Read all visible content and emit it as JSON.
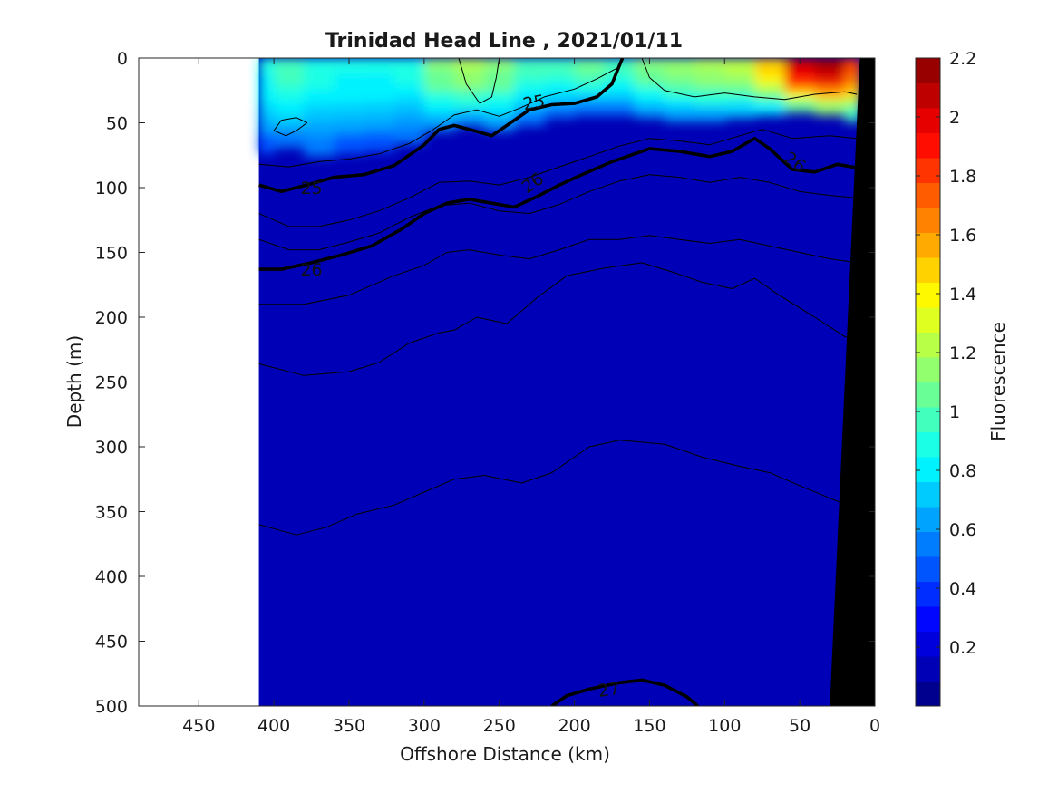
{
  "chart_data": {
    "type": "heatmap",
    "title": "Trinidad Head Line , 2021/01/11",
    "xlabel": "Offshore Distance (km)",
    "ylabel": "Depth (m)",
    "colorbar_label": "Fluorescence",
    "xlim": [
      490,
      0
    ],
    "ylim": [
      500,
      0
    ],
    "x_reversed": true,
    "y_reversed": true,
    "x_ticks": [
      "450",
      "400",
      "350",
      "300",
      "250",
      "200",
      "150",
      "100",
      "50",
      "0"
    ],
    "x_tick_values": [
      450,
      400,
      350,
      300,
      250,
      200,
      150,
      100,
      50,
      0
    ],
    "y_ticks": [
      "0",
      "50",
      "100",
      "150",
      "200",
      "250",
      "300",
      "350",
      "400",
      "450",
      "500"
    ],
    "y_tick_values": [
      0,
      50,
      100,
      150,
      200,
      250,
      300,
      350,
      400,
      450,
      500
    ],
    "colorbar_range": [
      0,
      2.2
    ],
    "colorbar_ticks": [
      "0.2",
      "0.4",
      "0.6",
      "0.8",
      "1",
      "1.2",
      "1.4",
      "1.6",
      "1.8",
      "2",
      "2.2"
    ],
    "colorbar_tick_values": [
      0.2,
      0.4,
      0.6,
      0.8,
      1.0,
      1.2,
      1.4,
      1.6,
      1.8,
      2.0,
      2.2
    ],
    "colormap": [
      "#00008f",
      "#0000b6",
      "#0000dd",
      "#0006ff",
      "#002dff",
      "#0055ff",
      "#007cff",
      "#00a4ff",
      "#00cbff",
      "#00f2ff",
      "#1affe5",
      "#42ffbd",
      "#69ff96",
      "#91ff6e",
      "#b8ff47",
      "#dfff20",
      "#fff900",
      "#ffd200",
      "#ffaa00",
      "#ff8300",
      "#ff5c00",
      "#ff3400",
      "#ff0d00",
      "#e60000",
      "#bf0000",
      "#980000"
    ],
    "data_x_extent": [
      410,
      10
    ],
    "background_value": 0.15,
    "surface_fluorescence": {
      "distance_km": [
        410,
        390,
        370,
        350,
        330,
        310,
        290,
        270,
        250,
        230,
        210,
        190,
        170,
        150,
        130,
        110,
        90,
        70,
        50,
        30,
        10
      ],
      "top_depth_m": 0,
      "values_0_50m": [
        0.85,
        0.95,
        0.9,
        0.85,
        0.85,
        0.9,
        1.1,
        1.2,
        1.1,
        0.95,
        1.0,
        1.05,
        1.0,
        1.1,
        1.15,
        1.2,
        1.25,
        1.5,
        2.05,
        2.15,
        1.8
      ],
      "mixed_layer_depth_m": [
        70,
        65,
        72,
        70,
        68,
        62,
        52,
        48,
        52,
        48,
        42,
        40,
        40,
        42,
        45,
        45,
        42,
        40,
        38,
        40,
        45
      ]
    },
    "contours": [
      {
        "label": "25",
        "bold": true,
        "points": [
          [
            410,
            98
          ],
          [
            395,
            103
          ],
          [
            375,
            97
          ],
          [
            360,
            92
          ],
          [
            340,
            90
          ],
          [
            320,
            83
          ],
          [
            300,
            67
          ],
          [
            290,
            55
          ],
          [
            280,
            52
          ],
          [
            270,
            55
          ],
          [
            255,
            60
          ],
          [
            245,
            52
          ],
          [
            230,
            40
          ],
          [
            215,
            36
          ],
          [
            200,
            35
          ],
          [
            185,
            30
          ],
          [
            175,
            20
          ],
          [
            168,
            0
          ]
        ]
      },
      {
        "label": "26",
        "bold": true,
        "points": [
          [
            410,
            163
          ],
          [
            395,
            163
          ],
          [
            375,
            158
          ],
          [
            355,
            152
          ],
          [
            335,
            145
          ],
          [
            315,
            132
          ],
          [
            300,
            120
          ],
          [
            285,
            112
          ],
          [
            270,
            109
          ],
          [
            255,
            112
          ],
          [
            240,
            115
          ],
          [
            225,
            107
          ],
          [
            210,
            98
          ],
          [
            195,
            90
          ],
          [
            175,
            80
          ],
          [
            150,
            70
          ],
          [
            130,
            72
          ],
          [
            110,
            76
          ],
          [
            95,
            72
          ],
          [
            80,
            62
          ],
          [
            70,
            70
          ],
          [
            55,
            86
          ],
          [
            40,
            88
          ],
          [
            25,
            82
          ],
          [
            10,
            85
          ]
        ]
      },
      {
        "label": "27",
        "bold": true,
        "points": [
          [
            215,
            500
          ],
          [
            205,
            492
          ],
          [
            190,
            487
          ],
          [
            170,
            482
          ],
          [
            155,
            480
          ],
          [
            140,
            484
          ],
          [
            125,
            493
          ],
          [
            118,
            500
          ]
        ]
      },
      {
        "label": "",
        "bold": false,
        "points": [
          [
            410,
            190
          ],
          [
            380,
            190
          ],
          [
            350,
            183
          ],
          [
            320,
            168
          ],
          [
            300,
            160
          ],
          [
            285,
            150
          ],
          [
            270,
            148
          ],
          [
            250,
            152
          ],
          [
            230,
            155
          ],
          [
            210,
            148
          ],
          [
            190,
            140
          ],
          [
            170,
            140
          ],
          [
            150,
            137
          ],
          [
            130,
            140
          ],
          [
            110,
            143
          ],
          [
            90,
            140
          ],
          [
            70,
            145
          ],
          [
            50,
            150
          ],
          [
            30,
            155
          ],
          [
            12,
            158
          ]
        ]
      },
      {
        "label": "",
        "bold": false,
        "points": [
          [
            410,
            236
          ],
          [
            380,
            245
          ],
          [
            350,
            242
          ],
          [
            330,
            235
          ],
          [
            310,
            220
          ],
          [
            290,
            212
          ],
          [
            280,
            210
          ],
          [
            265,
            200
          ],
          [
            245,
            205
          ],
          [
            225,
            185
          ],
          [
            205,
            168
          ],
          [
            180,
            162
          ],
          [
            155,
            158
          ],
          [
            135,
            165
          ],
          [
            115,
            173
          ],
          [
            95,
            178
          ],
          [
            80,
            170
          ],
          [
            65,
            182
          ],
          [
            40,
            200
          ],
          [
            20,
            215
          ],
          [
            12,
            218
          ]
        ]
      },
      {
        "label": "",
        "bold": false,
        "points": [
          [
            410,
            360
          ],
          [
            385,
            368
          ],
          [
            365,
            362
          ],
          [
            345,
            352
          ],
          [
            320,
            345
          ],
          [
            300,
            335
          ],
          [
            280,
            325
          ],
          [
            260,
            322
          ],
          [
            235,
            328
          ],
          [
            215,
            320
          ],
          [
            190,
            300
          ],
          [
            170,
            295
          ],
          [
            140,
            298
          ],
          [
            115,
            308
          ],
          [
            90,
            315
          ],
          [
            70,
            320
          ],
          [
            50,
            330
          ],
          [
            25,
            342
          ],
          [
            12,
            348
          ]
        ]
      },
      {
        "label": "",
        "bold": false,
        "points": [
          [
            410,
            120
          ],
          [
            390,
            130
          ],
          [
            370,
            130
          ],
          [
            350,
            125
          ],
          [
            330,
            118
          ],
          [
            310,
            108
          ],
          [
            290,
            96
          ],
          [
            270,
            95
          ],
          [
            250,
            98
          ],
          [
            230,
            92
          ],
          [
            210,
            84
          ],
          [
            190,
            76
          ],
          [
            170,
            68
          ],
          [
            150,
            62
          ],
          [
            130,
            64
          ],
          [
            110,
            67
          ],
          [
            90,
            60
          ],
          [
            75,
            55
          ],
          [
            55,
            62
          ],
          [
            30,
            60
          ],
          [
            12,
            62
          ]
        ]
      },
      {
        "label": "",
        "bold": false,
        "points": [
          [
            410,
            140
          ],
          [
            390,
            148
          ],
          [
            370,
            148
          ],
          [
            350,
            142
          ],
          [
            330,
            135
          ],
          [
            310,
            123
          ],
          [
            290,
            114
          ],
          [
            270,
            112
          ],
          [
            250,
            118
          ],
          [
            230,
            120
          ],
          [
            210,
            113
          ],
          [
            190,
            103
          ],
          [
            170,
            95
          ],
          [
            150,
            90
          ],
          [
            130,
            92
          ],
          [
            110,
            96
          ],
          [
            90,
            92
          ],
          [
            70,
            96
          ],
          [
            50,
            103
          ],
          [
            30,
            106
          ],
          [
            12,
            108
          ]
        ]
      },
      {
        "label": "",
        "bold": false,
        "points": [
          [
            410,
            82
          ],
          [
            390,
            84
          ],
          [
            370,
            80
          ],
          [
            350,
            78
          ],
          [
            330,
            74
          ],
          [
            310,
            66
          ],
          [
            295,
            56
          ],
          [
            280,
            44
          ],
          [
            265,
            40
          ],
          [
            250,
            45
          ],
          [
            235,
            38
          ],
          [
            220,
            30
          ],
          [
            200,
            24
          ],
          [
            185,
            16
          ],
          [
            172,
            8
          ]
        ]
      },
      {
        "label": "",
        "bold": false,
        "points": [
          [
            155,
            0
          ],
          [
            150,
            15
          ],
          [
            140,
            25
          ],
          [
            120,
            30
          ],
          [
            100,
            27
          ],
          [
            80,
            30
          ],
          [
            60,
            32
          ],
          [
            40,
            28
          ],
          [
            20,
            26
          ],
          [
            12,
            28
          ]
        ]
      },
      {
        "label": "",
        "bold": false,
        "points": [
          [
            395,
            48
          ],
          [
            385,
            46
          ],
          [
            378,
            50
          ],
          [
            385,
            56
          ],
          [
            392,
            60
          ],
          [
            400,
            56
          ],
          [
            395,
            48
          ]
        ]
      },
      {
        "label": "",
        "bold": false,
        "points": [
          [
            277,
            0
          ],
          [
            272,
            20
          ],
          [
            263,
            35
          ],
          [
            255,
            30
          ],
          [
            252,
            15
          ],
          [
            250,
            0
          ]
        ]
      }
    ],
    "bottom_topography": [
      [
        0,
        0
      ],
      [
        10,
        0
      ],
      [
        30,
        500
      ],
      [
        0,
        500
      ]
    ],
    "contour_label_positions": [
      {
        "text": "25",
        "at": [
          375,
          100
        ],
        "rotate": 0
      },
      {
        "text": "25",
        "at": [
          227,
          34
        ],
        "rotate": -10
      },
      {
        "text": "26",
        "at": [
          375,
          163
        ],
        "rotate": 0
      },
      {
        "text": "26",
        "at": [
          228,
          96
        ],
        "rotate": -35
      },
      {
        "text": "26",
        "at": [
          53,
          80
        ],
        "rotate": 35
      },
      {
        "text": "27",
        "at": [
          177,
          487
        ],
        "rotate": -8
      }
    ]
  }
}
